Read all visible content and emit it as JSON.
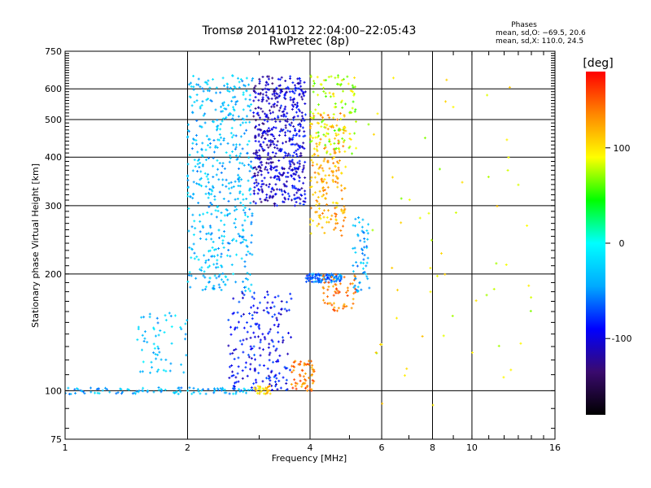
{
  "chart_data": {
    "type": "scatter",
    "title": "Tromsø 20141012 22:04:00–22:05:43",
    "subtitle": "RwPretec (8p)",
    "xlabel": "Frequency [MHz]",
    "ylabel": "Stationary phase Virtual Height [km]",
    "x_scale": "log",
    "y_scale": "log",
    "xlim": [
      1,
      16
    ],
    "ylim": [
      75,
      750
    ],
    "x_ticks": [
      1,
      2,
      4,
      6,
      8,
      10,
      16
    ],
    "x_tick_labels": [
      "1",
      "2",
      "4",
      "6",
      "8",
      "10",
      "16"
    ],
    "y_ticks": [
      75,
      100,
      200,
      300,
      400,
      500,
      600,
      750
    ],
    "y_tick_labels": [
      "75",
      "100",
      "200",
      "300",
      "400",
      "500",
      "600",
      "750"
    ],
    "grid": true,
    "colorbar": {
      "label": "[deg]",
      "range": [
        -180,
        180
      ],
      "ticks": [
        100,
        0,
        -100
      ],
      "tick_labels": [
        "100",
        "0",
        "-100"
      ],
      "colors": [
        "#000000",
        "#3a0a6e",
        "#0000ff",
        "#00aaff",
        "#00ffff",
        "#00ff00",
        "#ffff00",
        "#ff8800",
        "#ff0000"
      ]
    },
    "stats": {
      "header": "Phases",
      "line_o": "mean, sd,O: −69.5, 20.6",
      "line_x": "mean, sd,X: 110.0, 24.5"
    },
    "series_note": "each point coloured by phase in degrees",
    "points_summary": [
      {
        "freq_range": [
          1.0,
          2.0
        ],
        "height": 100,
        "phase": -40,
        "density": 60
      },
      {
        "freq_range": [
          2.0,
          2.9
        ],
        "height": 100,
        "phase": -35,
        "density": 40
      },
      {
        "freq_range": [
          1.5,
          2.0
        ],
        "height_range": [
          110,
          160
        ],
        "phase": -30,
        "density": 60
      },
      {
        "freq_range": [
          2.0,
          2.9
        ],
        "height_range": [
          180,
          650
        ],
        "phase": -35,
        "density": 500
      },
      {
        "freq_range": [
          2.9,
          3.3
        ],
        "height_range": [
          300,
          650
        ],
        "phase": -110,
        "density": 250
      },
      {
        "freq_range": [
          3.3,
          3.9
        ],
        "height_range": [
          300,
          650
        ],
        "phase": -100,
        "density": 300
      },
      {
        "freq_range": [
          2.5,
          3.6
        ],
        "height_range": [
          100,
          180
        ],
        "phase": -90,
        "density": 200
      },
      {
        "freq_range": [
          3.6,
          4.1
        ],
        "height_range": [
          100,
          120
        ],
        "phase": 140,
        "density": 60
      },
      {
        "freq_range": [
          2.9,
          3.2
        ],
        "height_range": [
          98,
          103
        ],
        "phase": 110,
        "density": 30
      },
      {
        "freq_range": [
          3.9,
          4.8
        ],
        "height_range": [
          190,
          200
        ],
        "phase": -60,
        "density": 100
      },
      {
        "freq_range": [
          4.0,
          4.9
        ],
        "height_range": [
          250,
          520
        ],
        "phase": 120,
        "density": 200
      },
      {
        "freq_range": [
          4.0,
          5.2
        ],
        "height_range": [
          400,
          650
        ],
        "phase": 80,
        "density": 120
      },
      {
        "freq_range": [
          4.3,
          5.2
        ],
        "height_range": [
          160,
          200
        ],
        "phase": 140,
        "density": 60
      },
      {
        "freq_range": [
          5.1,
          5.6
        ],
        "height_range": [
          180,
          280
        ],
        "phase": -40,
        "density": 60
      },
      {
        "freq_range": [
          5.5,
          14
        ],
        "height_range": [
          90,
          660
        ],
        "phase": 90,
        "density": 60
      }
    ]
  }
}
